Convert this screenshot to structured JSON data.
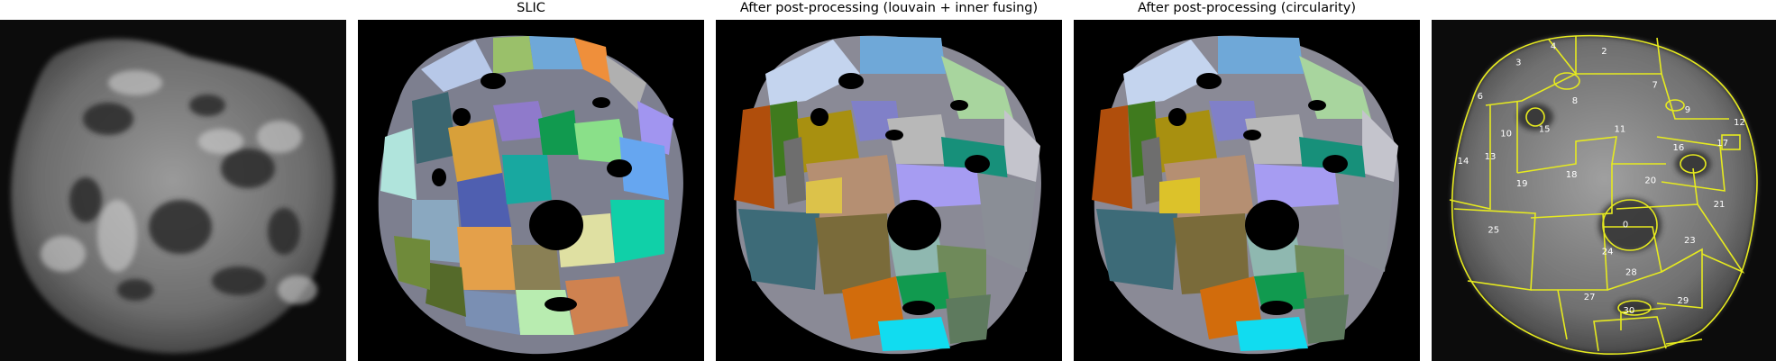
{
  "figure": {
    "panels": [
      {
        "title": "",
        "kind": "grayscale-microscopy"
      },
      {
        "title": "SLIC",
        "kind": "superpixel-segmentation"
      },
      {
        "title": "After post-processing (louvain + inner fusing)",
        "kind": "merged-segmentation"
      },
      {
        "title": "After post-processing (circularity)",
        "kind": "merged-segmentation"
      },
      {
        "title": "",
        "kind": "boundary-overlay"
      }
    ],
    "overlay_labels": [
      "0",
      "2",
      "3",
      "4",
      "6",
      "7",
      "8",
      "9",
      "10",
      "11",
      "12",
      "13",
      "14",
      "15",
      "16",
      "17",
      "18",
      "19",
      "20",
      "21",
      "23",
      "24",
      "25",
      "27",
      "28",
      "29",
      "30"
    ],
    "colors": {
      "background": "#000000",
      "boundary": "#e6ea1f"
    }
  }
}
